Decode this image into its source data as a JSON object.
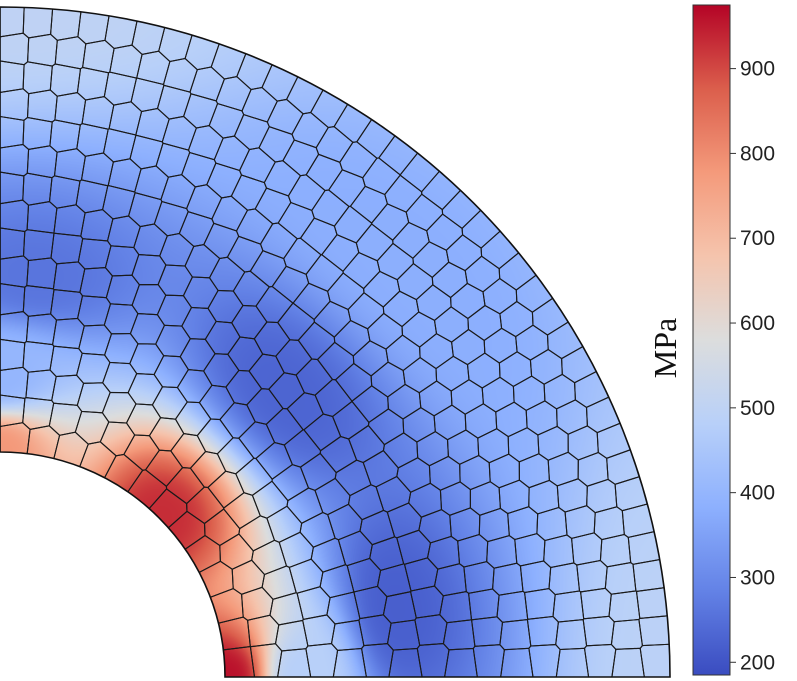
{
  "chart_data": {
    "type": "heatmap",
    "title": "",
    "field": "stress contour on a quarter annular plate with polygonal (Voronoi-like) mesh",
    "geometry": {
      "inner_radius": 1,
      "outer_radius": 3,
      "angle_range_deg": [
        0,
        90
      ]
    },
    "colorbar": {
      "label": "MPa",
      "min": 185,
      "max": 975,
      "ticks": [
        200,
        300,
        400,
        500,
        600,
        700,
        800,
        900
      ],
      "colormap": [
        "#3a4cc0",
        "#6382e6",
        "#8db0fe",
        "#b8d0f9",
        "#dcdddd",
        "#f5c4ad",
        "#f49a7b",
        "#db5e4c",
        "#b40426"
      ]
    },
    "field_samples": [
      {
        "r": 1.0,
        "theta_deg": 0,
        "value": 960
      },
      {
        "r": 1.0,
        "theta_deg": 45,
        "value": 930
      },
      {
        "r": 1.0,
        "theta_deg": 90,
        "value": 780
      },
      {
        "r": 1.35,
        "theta_deg": 0,
        "value": 480
      },
      {
        "r": 1.35,
        "theta_deg": 90,
        "value": 400
      },
      {
        "r": 1.8,
        "theta_deg": 10,
        "value": 220
      },
      {
        "r": 1.8,
        "theta_deg": 45,
        "value": 230
      },
      {
        "r": 1.8,
        "theta_deg": 85,
        "value": 260
      },
      {
        "r": 2.6,
        "theta_deg": 45,
        "value": 380
      },
      {
        "r": 3.0,
        "theta_deg": 0,
        "value": 490
      },
      {
        "r": 3.0,
        "theta_deg": 90,
        "value": 500
      }
    ]
  }
}
